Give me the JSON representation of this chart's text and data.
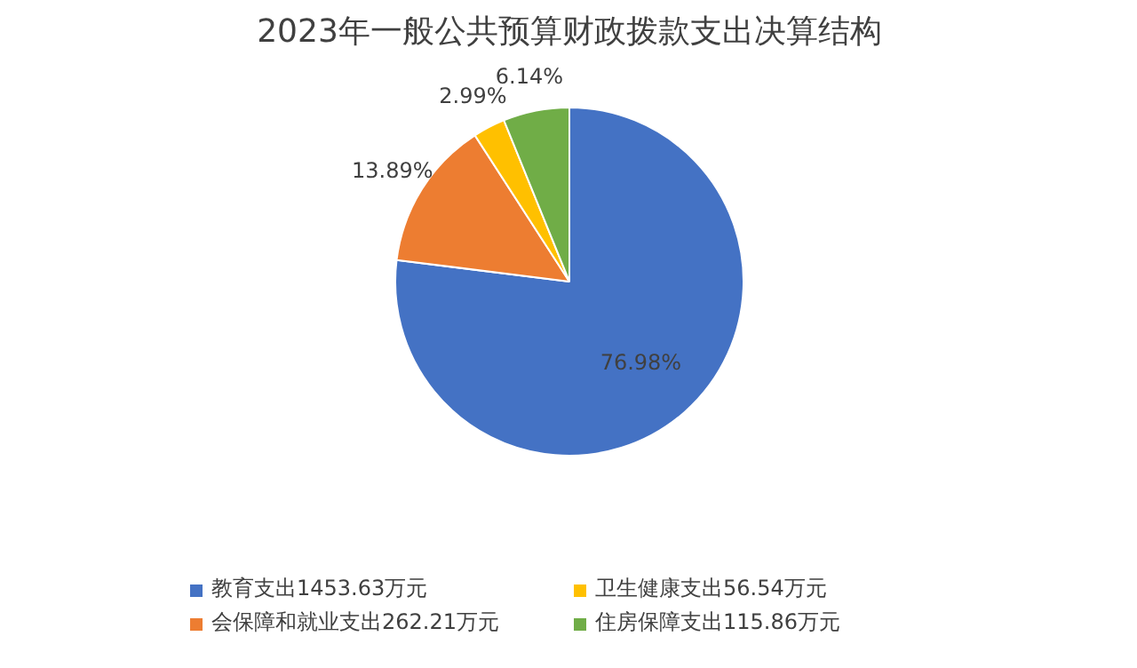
{
  "chart_data": {
    "type": "pie",
    "title": "2023年一般公共预算财政拨款支出决算结构",
    "categories": [
      "教育支出1453.63万元",
      "会保障和就业支出262.21万元",
      "卫生健康支出56.54万元",
      "住房保障支出115.86万元"
    ],
    "values": [
      76.98,
      13.89,
      2.99,
      6.14
    ],
    "colors": [
      "#4472c4",
      "#ed7d31",
      "#ffc000",
      "#70ad47"
    ],
    "value_labels": [
      "76.98%",
      "13.89%",
      "2.99%",
      "6.14%"
    ],
    "legend": "bottom"
  }
}
